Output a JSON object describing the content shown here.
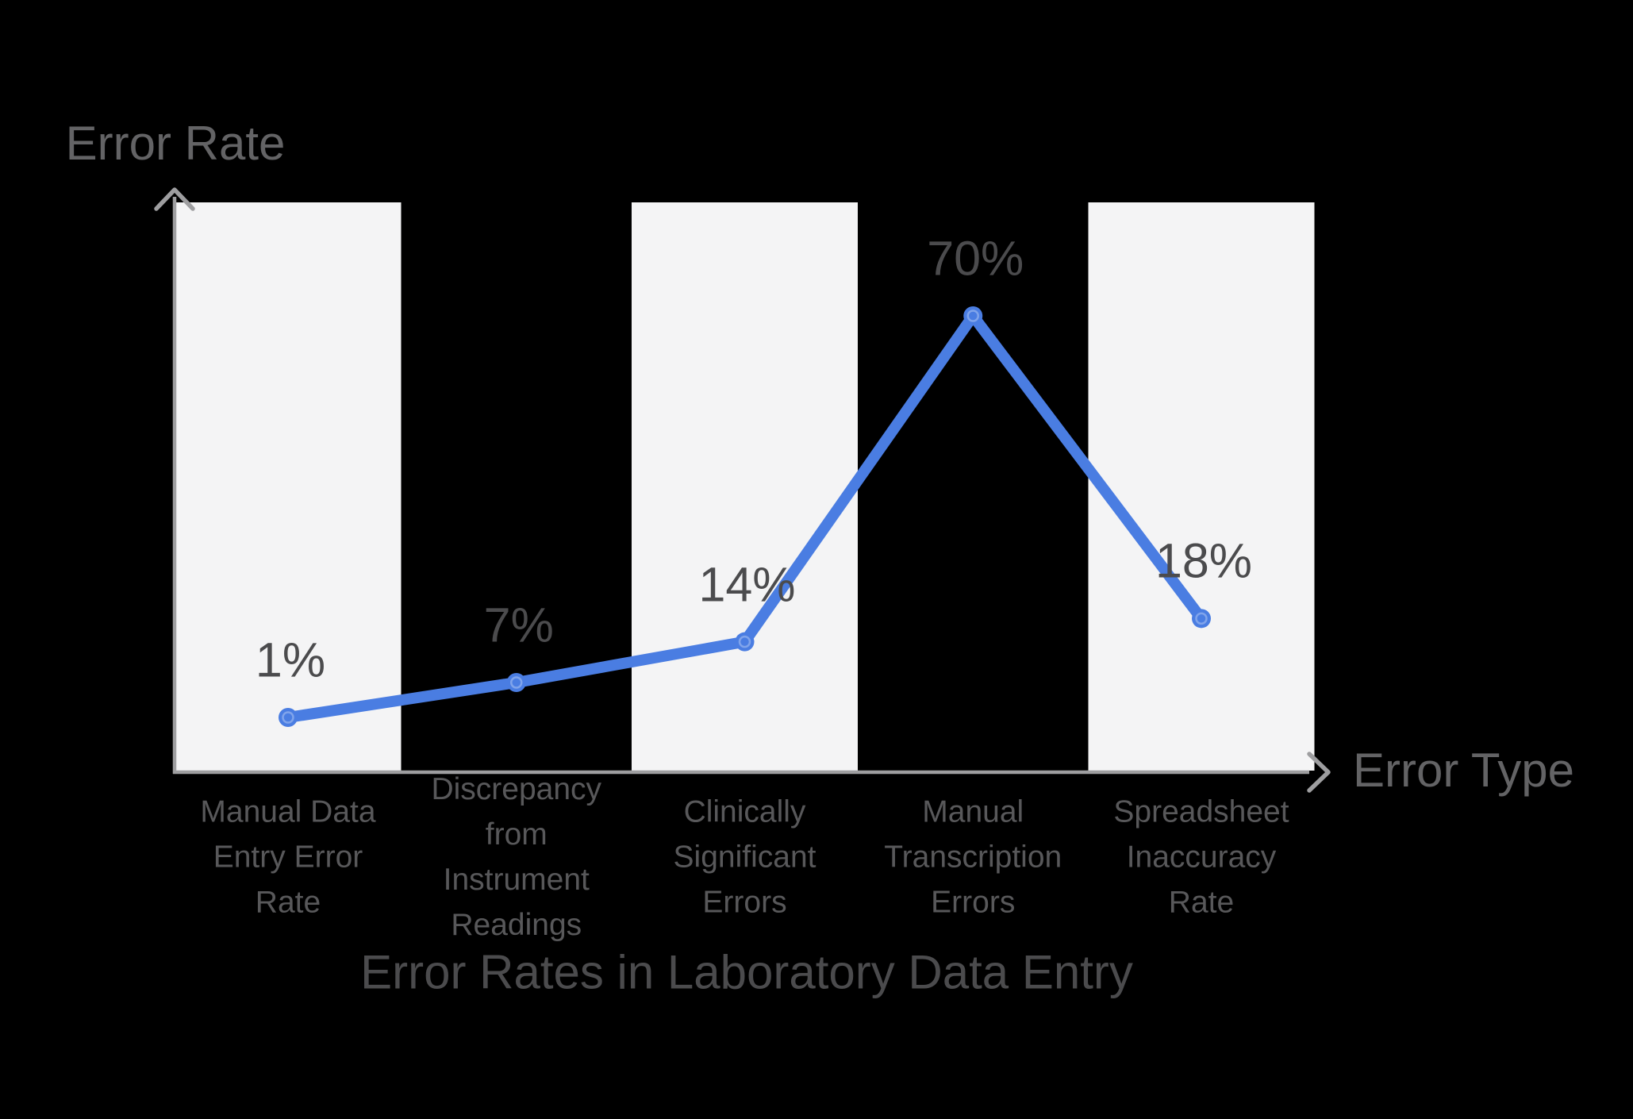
{
  "chart_data": {
    "type": "line",
    "title": "Error Rates in Laboratory Data Entry",
    "xlabel": "Error Type",
    "ylabel": "Error Rate",
    "categories": [
      "Manual Data Entry Error Rate",
      "Discrepancy from Instrument Readings",
      "Clinically Significant Errors",
      "Manual Transcription Errors",
      "Spreadsheet Inaccuracy Rate"
    ],
    "categories_wrapped": [
      "Manual Data\nEntry Error\nRate",
      "Discrepancy\nfrom\nInstrument\nReadings",
      "Clinically\nSignificant\nErrors",
      "Manual\nTranscription\nErrors",
      "Spreadsheet\nInaccuracy\nRate"
    ],
    "values": [
      1,
      7,
      14,
      70,
      18
    ],
    "labels": [
      "1%",
      "7%",
      "14%",
      "70%",
      "18%"
    ],
    "series": [
      {
        "name": "Error Rate",
        "values": [
          1,
          7,
          14,
          70,
          18
        ]
      }
    ],
    "ylim": [
      0,
      100
    ],
    "grid": false,
    "legend_position": "none",
    "band_columns": [
      1,
      3,
      5
    ]
  },
  "colors": {
    "background": "#000000",
    "band": "#F4F4F5",
    "axis": "#9E9EA0",
    "line": "#4A7DE2",
    "marker": "#4A7DE2",
    "marker_ring": "rgba(255,255,255,0.30)",
    "title_text": "#4B4B4D",
    "data_text": "#4B4B4D",
    "axis_text": "#636365",
    "category_text": "#58585A"
  }
}
